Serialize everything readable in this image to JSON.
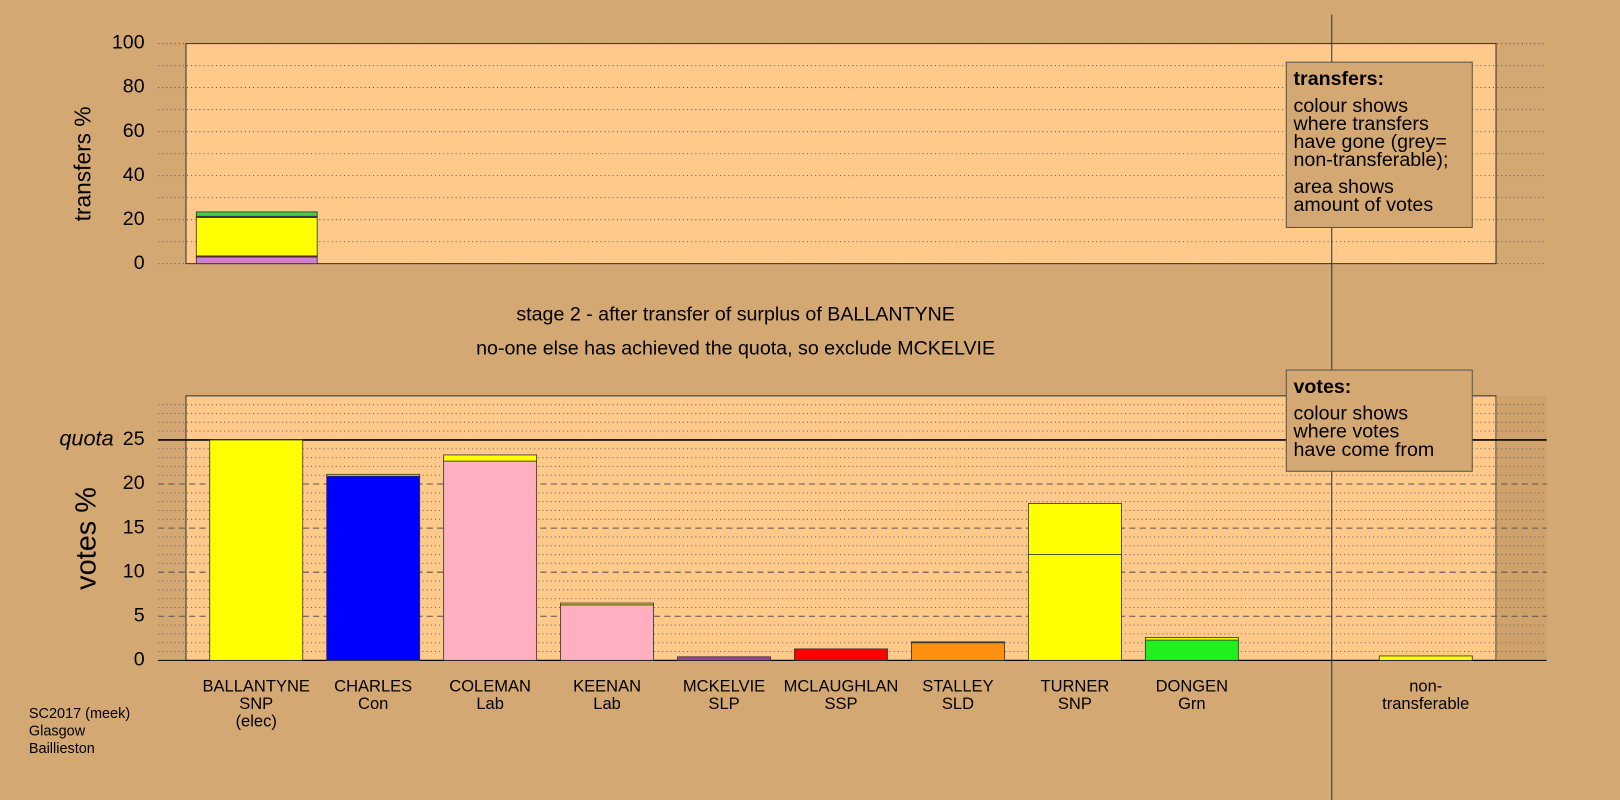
{
  "chart_data": [
    {
      "type": "stacked-bar",
      "ylabel": "transfers %",
      "ylim": [
        0,
        100
      ],
      "yticks": [
        0,
        20,
        40,
        60,
        80,
        100
      ],
      "minor_yticks": [
        10,
        30,
        50,
        70,
        90
      ],
      "grid": true,
      "bars": [
        {
          "segments": [
            {
              "color": "#d080d0",
              "value": 3
            },
            {
              "color": "#ff0000",
              "value": 0.5
            },
            {
              "color": "#ffff00",
              "value": 17.5
            },
            {
              "color": "#4040c0",
              "value": 0.5
            },
            {
              "color": "#40d040",
              "value": 2
            }
          ]
        }
      ]
    },
    {
      "type": "stacked-bar",
      "ylabel": "votes %",
      "ylim": [
        0,
        30
      ],
      "yticks": [
        0,
        5,
        10,
        15,
        20,
        25
      ],
      "minor_yticks": [
        1,
        2,
        3,
        4,
        6,
        7,
        8,
        9,
        11,
        12,
        13,
        14,
        16,
        17,
        18,
        19,
        21,
        22,
        23,
        24,
        26,
        27,
        28,
        29
      ],
      "grid": true,
      "quota": {
        "label": "quota",
        "value": 25
      },
      "categories": [
        {
          "lines": [
            "BALLANTYNE",
            "SNP",
            "(elec)"
          ]
        },
        {
          "lines": [
            "CHARLES",
            "Con"
          ]
        },
        {
          "lines": [
            "COLEMAN",
            "Lab"
          ]
        },
        {
          "lines": [
            "KEENAN",
            "Lab"
          ]
        },
        {
          "lines": [
            "MCKELVIE",
            "SLP"
          ]
        },
        {
          "lines": [
            "MCLAUGHLAN",
            "SSP"
          ]
        },
        {
          "lines": [
            "STALLEY",
            "SLD"
          ]
        },
        {
          "lines": [
            "TURNER",
            "SNP"
          ]
        },
        {
          "lines": [
            "DONGEN",
            "Grn"
          ]
        },
        null,
        {
          "lines": [
            "non-",
            "transferable"
          ]
        }
      ],
      "bars": [
        {
          "segments": [
            {
              "color": "#ffff00",
              "value": 25
            }
          ]
        },
        {
          "segments": [
            {
              "color": "#0000ff",
              "value": 20.9
            },
            {
              "color": "#ffff00",
              "value": 0.2
            }
          ]
        },
        {
          "segments": [
            {
              "color": "#ffb0c0",
              "value": 22.6
            },
            {
              "color": "#ffff00",
              "value": 0.7
            }
          ]
        },
        {
          "segments": [
            {
              "color": "#ffb0c0",
              "value": 6.3
            },
            {
              "color": "#ffff00",
              "value": 0.2
            }
          ]
        },
        {
          "segments": [
            {
              "color": "#a040a0",
              "value": 0.4
            }
          ]
        },
        {
          "segments": [
            {
              "color": "#ff0000",
              "value": 1.3
            }
          ]
        },
        {
          "segments": [
            {
              "color": "#ff9010",
              "value": 2.0
            },
            {
              "color": "#ffff00",
              "value": 0.1
            }
          ]
        },
        {
          "segments": [
            {
              "color": "#ffff00",
              "value": 12.0
            },
            {
              "color": "#ffff00",
              "value": 5.8
            }
          ]
        },
        {
          "segments": [
            {
              "color": "#20f020",
              "value": 2.3
            },
            {
              "color": "#ffff00",
              "value": 0.3
            }
          ]
        },
        {
          "segments": []
        },
        {
          "segments": [
            {
              "color": "#ffff00",
              "value": 0.5
            }
          ]
        }
      ]
    }
  ],
  "titles": [
    "stage 2 - after transfer of surplus of BALLANTYNE",
    "no-one else has achieved the quota, so exclude MCKELVIE"
  ],
  "legends": [
    {
      "title": "transfers:",
      "paragraphs": [
        [
          "colour shows",
          "where transfers",
          "have gone (grey=",
          "non-transferable);"
        ],
        [
          "area shows",
          "amount of votes"
        ]
      ]
    },
    {
      "title": "votes:",
      "paragraphs": [
        [
          "colour shows",
          "where votes",
          "have come from"
        ]
      ]
    }
  ],
  "footer": [
    "SC2017 (meek)",
    "Glasgow",
    "Baillieston"
  ]
}
